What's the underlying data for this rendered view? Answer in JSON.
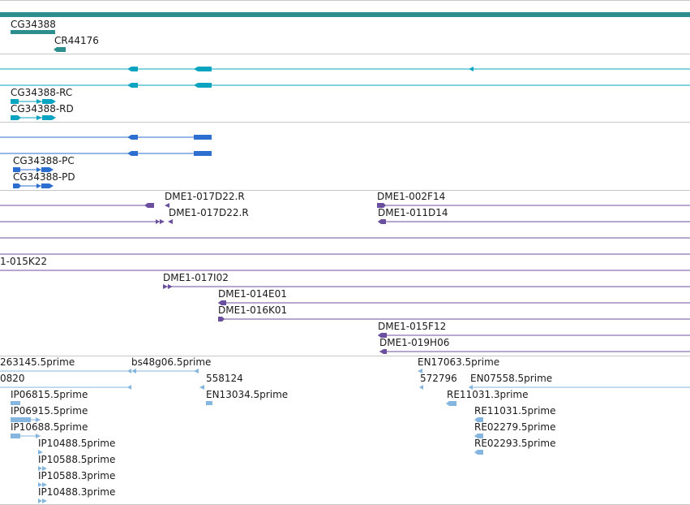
{
  "colors": {
    "gene": "#2d8e8f",
    "transcript": "#0aa4c0",
    "protein": "#2c6fd0",
    "clone_end": "#6b4f9f",
    "est": "#85b6e0",
    "separator": "#c8c8c8",
    "text": "#1a1a1a"
  },
  "tracks": {
    "genes": {
      "items": [
        "CG34388",
        "CR44176"
      ]
    },
    "transcripts": {
      "items": [
        "CG34388-RC",
        "CG34388-RD"
      ]
    },
    "proteins": {
      "items": [
        "CG34388-PC",
        "CG34388-PD"
      ]
    },
    "clone_ends": {
      "items": [
        "DME1-017D22.R",
        "DME1-002F14",
        "DME1-017D22.R",
        "DME1-011D14",
        "1-015K22",
        "DME1-017I02",
        "DME1-014E01",
        "DME1-016K01",
        "DME1-015F12",
        "DME1-019H06"
      ]
    },
    "ests": {
      "items": [
        "263145.5prime",
        "bs48g06.5prime",
        "EN17063.5prime",
        "0820",
        "558124",
        "572796",
        "EN07558.5prime",
        "IP06815.5prime",
        "EN13034.5prime",
        "RE11031.3prime",
        "IP06915.5prime",
        "RE11031.5prime",
        "IP10688.5prime",
        "RE02279.5prime",
        "IP10488.5prime",
        "RE02293.5prime",
        "IP10588.5prime",
        "IP10588.3prime",
        "IP10488.3prime"
      ]
    }
  }
}
